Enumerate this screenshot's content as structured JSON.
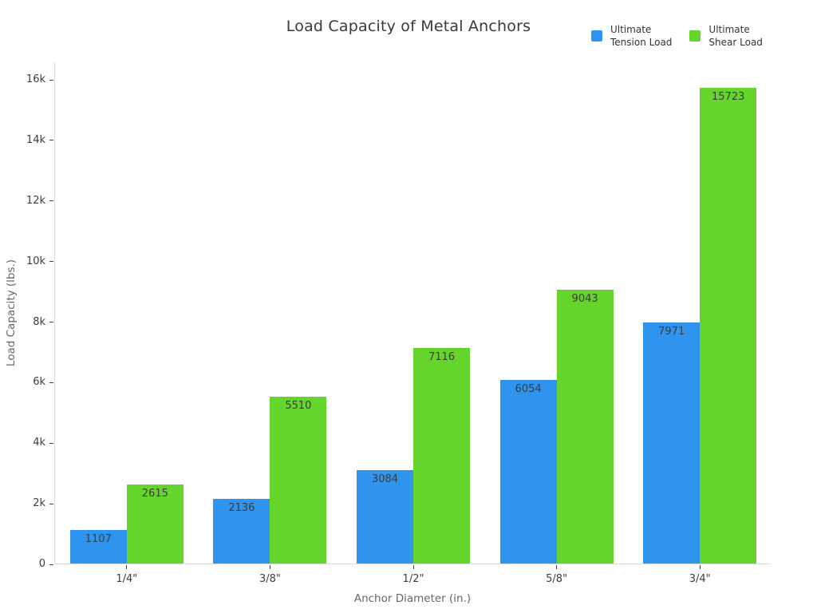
{
  "page": {
    "background": "#ffffff"
  },
  "colors": {
    "tension_blue": "#2F94ED",
    "shear_green": "#65D42B",
    "axis_line": "#d9d9d9",
    "tick": "#444444",
    "tick_label": "#3c3c3c",
    "axis_title": "#666666",
    "title": "#3a3a3a",
    "bar_value_label": "#3c3c3c"
  },
  "chart_data": {
    "type": "bar",
    "title": "Load Capacity of Metal Anchors",
    "xlabel": "Anchor Diameter (in.)",
    "ylabel": "Load Capacity (lbs.)",
    "categories": [
      "1/4\"",
      "3/8\"",
      "1/2\"",
      "5/8\"",
      "3/4\""
    ],
    "series": [
      {
        "name": "Ultimate Tension Load",
        "legend_lines": [
          "Ultimate",
          "Tension Load"
        ],
        "color": "#2F94ED",
        "values": [
          1107,
          2136,
          3084,
          6054,
          7971
        ]
      },
      {
        "name": "Ultimate Shear Load",
        "legend_lines": [
          "Ultimate",
          "Shear Load"
        ],
        "color": "#65D42B",
        "values": [
          2615,
          5510,
          7116,
          9043,
          15723
        ]
      }
    ],
    "bar_value_labels_shown": true,
    "y_ticks": [
      {
        "value": 0,
        "label": "0"
      },
      {
        "value": 2000,
        "label": "2k"
      },
      {
        "value": 4000,
        "label": "4k"
      },
      {
        "value": 6000,
        "label": "6k"
      },
      {
        "value": 8000,
        "label": "8k"
      },
      {
        "value": 10000,
        "label": "10k"
      },
      {
        "value": 12000,
        "label": "12k"
      },
      {
        "value": 14000,
        "label": "14k"
      },
      {
        "value": 16000,
        "label": "16k"
      },
      {
        "value": 16000,
        "label": "16k"
      }
    ],
    "ylim": [
      0,
      16580
    ],
    "grid": "off",
    "legend_position": "top-right"
  }
}
